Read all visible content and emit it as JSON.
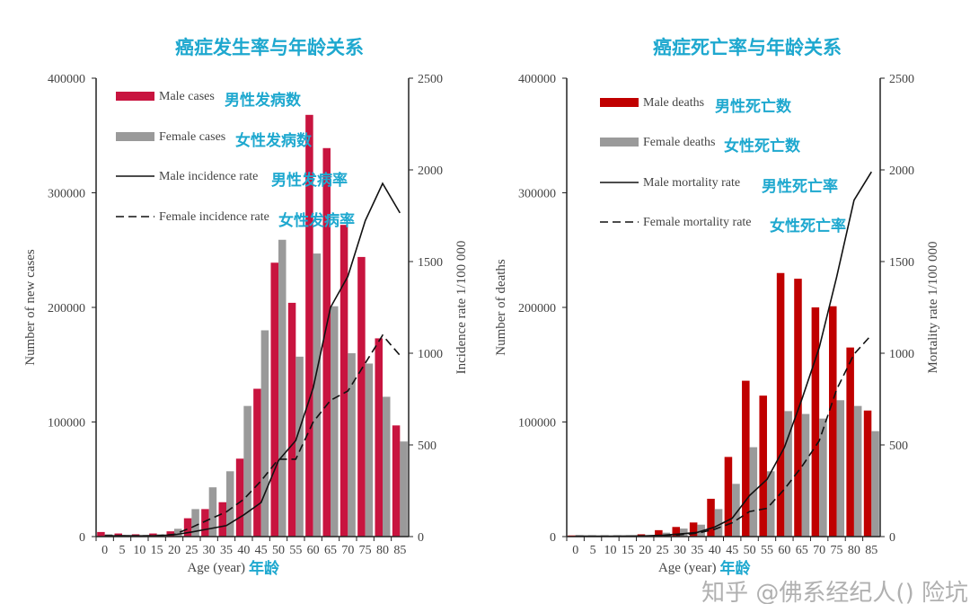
{
  "chart_data": [
    {
      "type": "bar",
      "title": "癌症发生率与年龄关系",
      "xlabel": "Age (year)",
      "xlabel_cn": "年龄",
      "ylabel": "Number of new cases",
      "y2label": "Incidence rate 1/100 000",
      "ylim": [
        0,
        400000
      ],
      "y2lim": [
        0,
        2500
      ],
      "yticks": [
        "0",
        "100000",
        "200000",
        "300000",
        "400000"
      ],
      "y2ticks": [
        "0",
        "500",
        "1000",
        "1500",
        "2000",
        "2500"
      ],
      "categories": [
        "0",
        "5",
        "10",
        "15",
        "20",
        "25",
        "30",
        "35",
        "40",
        "45",
        "50",
        "55",
        "60",
        "65",
        "70",
        "75",
        "80",
        "85"
      ],
      "grid": false,
      "legend_position": "top-left",
      "series": [
        {
          "name": "Male cases",
          "name_cn": "男性发病数",
          "kind": "bar",
          "color": "#c8143f",
          "values": [
            4000,
            2700,
            2000,
            2700,
            4600,
            16000,
            24000,
            30000,
            68000,
            129000,
            239000,
            204000,
            368000,
            339000,
            272000,
            244000,
            173000,
            97000
          ]
        },
        {
          "name": "Female cases",
          "name_cn": "女性发病数",
          "kind": "bar",
          "color": "#9a9a9a",
          "values": [
            2000,
            1500,
            1000,
            2000,
            6800,
            24000,
            43000,
            57000,
            114000,
            180000,
            259000,
            157000,
            247000,
            201000,
            160000,
            151000,
            122000,
            83000
          ]
        },
        {
          "name": "Male incidence rate",
          "name_cn": "男性发病率",
          "kind": "line",
          "style": "solid",
          "axis": "right",
          "color": "#111111",
          "values": [
            5,
            4,
            4,
            5,
            10,
            25,
            42,
            60,
            118,
            186,
            414,
            524,
            811,
            1250,
            1419,
            1723,
            1926,
            1765
          ]
        },
        {
          "name": "Female incidence rate",
          "name_cn": "女性发病率",
          "kind": "line",
          "style": "dashed",
          "axis": "right",
          "color": "#111111",
          "values": [
            5,
            4,
            4,
            5,
            12,
            50,
            93,
            135,
            203,
            304,
            422,
            422,
            625,
            743,
            794,
            946,
            1098,
            988
          ]
        }
      ]
    },
    {
      "type": "bar",
      "title": "癌症死亡率与年龄关系",
      "xlabel": "Age (year)",
      "xlabel_cn": "年龄",
      "ylabel": "Number of deaths",
      "y2label": "Mortality rate 1/100 000",
      "ylim": [
        0,
        400000
      ],
      "y2lim": [
        0,
        2500
      ],
      "yticks": [
        "0",
        "100000",
        "200000",
        "300000",
        "400000"
      ],
      "y2ticks": [
        "0",
        "500",
        "1000",
        "1500",
        "2000",
        "2500"
      ],
      "categories": [
        "0",
        "5",
        "10",
        "15",
        "20",
        "25",
        "30",
        "35",
        "40",
        "45",
        "50",
        "55",
        "60",
        "65",
        "70",
        "75",
        "80",
        "85"
      ],
      "grid": false,
      "legend_position": "top-left",
      "series": [
        {
          "name": "Male deaths",
          "name_cn": "男性死亡数",
          "kind": "bar",
          "color": "#c00000",
          "values": [
            1000,
            500,
            500,
            500,
            2000,
            5600,
            8400,
            12300,
            33000,
            69500,
            136000,
            123000,
            230000,
            225000,
            200000,
            201000,
            165000,
            110000
          ]
        },
        {
          "name": "Female deaths",
          "name_cn": "女性死亡数",
          "kind": "bar",
          "color": "#9a9a9a",
          "values": [
            500,
            300,
            300,
            400,
            1000,
            3400,
            7000,
            10400,
            24000,
            46000,
            78000,
            57000,
            109500,
            107000,
            103000,
            119000,
            114000,
            92000
          ]
        },
        {
          "name": "Male mortality rate",
          "name_cn": "男性死亡率",
          "kind": "line",
          "style": "solid",
          "axis": "right",
          "color": "#111111",
          "values": [
            3,
            2,
            2,
            3,
            4,
            7,
            14,
            23,
            52,
            100,
            224,
            312,
            487,
            749,
            1030,
            1415,
            1835,
            1989
          ]
        },
        {
          "name": "Female mortality rate",
          "name_cn": "女性死亡率",
          "kind": "line",
          "style": "dashed",
          "axis": "right",
          "color": "#111111",
          "values": [
            2,
            2,
            2,
            2,
            3,
            5,
            10,
            18,
            40,
            75,
            137,
            154,
            259,
            382,
            522,
            802,
            995,
            1100
          ]
        }
      ]
    }
  ],
  "watermark": "知乎 @佛系经纪人() 险坑"
}
